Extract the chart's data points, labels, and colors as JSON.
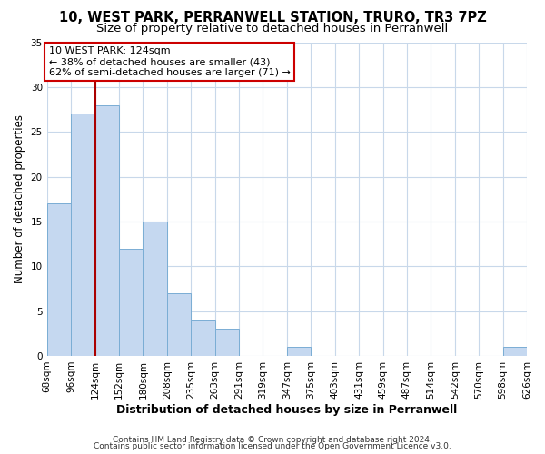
{
  "title": "10, WEST PARK, PERRANWELL STATION, TRURO, TR3 7PZ",
  "subtitle": "Size of property relative to detached houses in Perranwell",
  "xlabel": "Distribution of detached houses by size in Perranwell",
  "ylabel": "Number of detached properties",
  "bin_labels": [
    "68sqm",
    "96sqm",
    "124sqm",
    "152sqm",
    "180sqm",
    "208sqm",
    "235sqm",
    "263sqm",
    "291sqm",
    "319sqm",
    "347sqm",
    "375sqm",
    "403sqm",
    "431sqm",
    "459sqm",
    "487sqm",
    "514sqm",
    "542sqm",
    "570sqm",
    "598sqm",
    "626sqm"
  ],
  "bar_heights": [
    17,
    27,
    28,
    12,
    15,
    7,
    4,
    3,
    0,
    0,
    1,
    0,
    0,
    0,
    0,
    0,
    0,
    0,
    0,
    1
  ],
  "bar_color": "#c5d8f0",
  "bar_edge_color": "#7aadd4",
  "highlight_index": 2,
  "highlight_line_color": "#aa0000",
  "annotation_line1": "10 WEST PARK: 124sqm",
  "annotation_line2": "← 38% of detached houses are smaller (43)",
  "annotation_line3": "62% of semi-detached houses are larger (71) →",
  "annotation_box_edgecolor": "#cc0000",
  "annotation_box_facecolor": "#ffffff",
  "ylim": [
    0,
    35
  ],
  "yticks": [
    0,
    5,
    10,
    15,
    20,
    25,
    30,
    35
  ],
  "footer_line1": "Contains HM Land Registry data © Crown copyright and database right 2024.",
  "footer_line2": "Contains public sector information licensed under the Open Government Licence v3.0.",
  "background_color": "#ffffff",
  "grid_color": "#c8d8ea",
  "title_fontsize": 10.5,
  "subtitle_fontsize": 9.5,
  "xlabel_fontsize": 9,
  "ylabel_fontsize": 8.5,
  "tick_fontsize": 7.5,
  "annotation_fontsize": 8,
  "footer_fontsize": 6.5
}
